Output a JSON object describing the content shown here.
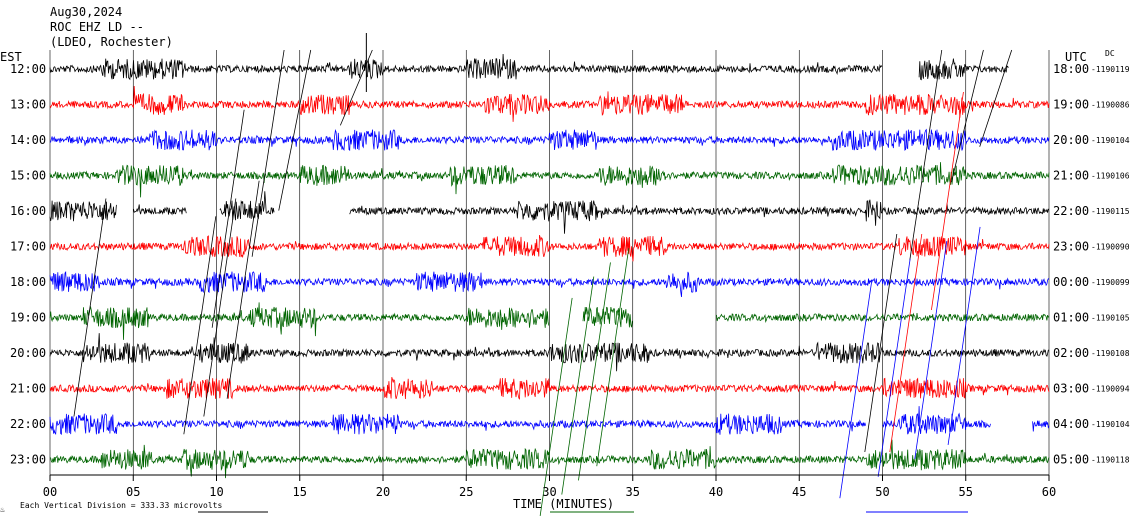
{
  "header": {
    "date": "Aug30,2024",
    "station": "ROC EHZ LD --",
    "network": "(LDEO, Rochester)"
  },
  "left_axis_label": "EST",
  "right_axis_label": "UTC",
  "dc_label": "DC",
  "footer": {
    "x_axis_title": "TIME (MINUTES)",
    "scale_note": "Each Vertical Division =  333.33 microvolts",
    "corner_mark": "♨"
  },
  "colors": {
    "cycle": [
      "#000000",
      "#ff0000",
      "#0000ff",
      "#006400"
    ],
    "grid": "#000000"
  },
  "chart_data": {
    "type": "line",
    "chart_kind": "helicorder seismogram",
    "x_range_minutes": [
      0,
      60
    ],
    "x_ticks": [
      "00",
      "05",
      "10",
      "15",
      "20",
      "25",
      "30",
      "35",
      "40",
      "45",
      "50",
      "55",
      "60"
    ],
    "rows": [
      {
        "est": "12:00",
        "utc": "18:00",
        "dc": "-1190119",
        "color": "#000000",
        "gaps": [
          [
            50,
            52.2
          ],
          [
            57.6,
            60
          ]
        ],
        "active": [
          [
            3,
            8
          ],
          [
            18,
            20
          ],
          [
            25,
            28
          ],
          [
            50,
            55
          ]
        ]
      },
      {
        "est": "13:00",
        "utc": "19:00",
        "dc": "-1190086",
        "color": "#ff0000",
        "gaps": [],
        "active": [
          [
            5,
            8
          ],
          [
            15,
            18
          ],
          [
            26,
            30
          ],
          [
            33,
            38
          ],
          [
            49,
            55
          ]
        ]
      },
      {
        "est": "14:00",
        "utc": "20:00",
        "dc": "-1190104",
        "color": "#0000ff",
        "gaps": [],
        "active": [
          [
            6,
            10
          ],
          [
            17,
            21
          ],
          [
            30,
            33
          ],
          [
            47,
            55
          ]
        ]
      },
      {
        "est": "15:00",
        "utc": "21:00",
        "dc": "-1190106",
        "color": "#006400",
        "gaps": [],
        "active": [
          [
            4,
            8
          ],
          [
            15,
            18
          ],
          [
            24,
            28
          ],
          [
            33,
            37
          ],
          [
            47,
            55
          ]
        ]
      },
      {
        "est": "16:00",
        "utc": "22:00",
        "dc": "-1190115",
        "color": "#000000",
        "gaps": [
          [
            4,
            5
          ],
          [
            8.2,
            10.2
          ],
          [
            13.5,
            18
          ]
        ],
        "active": [
          [
            0,
            4
          ],
          [
            10.5,
            13
          ],
          [
            28,
            33
          ],
          [
            49,
            50
          ]
        ]
      },
      {
        "est": "17:00",
        "utc": "23:00",
        "dc": "-1190090",
        "color": "#ff0000",
        "gaps": [],
        "active": [
          [
            8,
            12
          ],
          [
            26,
            30
          ],
          [
            33,
            37
          ],
          [
            51,
            55
          ]
        ]
      },
      {
        "est": "18:00",
        "utc": "00:00",
        "dc": "-1190099",
        "color": "#0000ff",
        "gaps": [],
        "active": [
          [
            0,
            3
          ],
          [
            9,
            13
          ],
          [
            22,
            26
          ],
          [
            37,
            39
          ]
        ]
      },
      {
        "est": "19:00",
        "utc": "01:00",
        "dc": "-1190105",
        "color": "#006400",
        "gaps": [
          [
            30,
            32
          ],
          [
            35,
            40
          ]
        ],
        "active": [
          [
            2,
            6
          ],
          [
            12,
            16
          ],
          [
            25,
            30
          ],
          [
            32,
            35
          ]
        ]
      },
      {
        "est": "20:00",
        "utc": "02:00",
        "dc": "-1190108",
        "color": "#000000",
        "gaps": [],
        "active": [
          [
            2,
            6
          ],
          [
            9,
            12
          ],
          [
            30,
            36
          ],
          [
            46,
            50
          ]
        ]
      },
      {
        "est": "21:00",
        "utc": "03:00",
        "dc": "-1190094",
        "color": "#ff0000",
        "gaps": [],
        "active": [
          [
            7,
            11
          ],
          [
            20,
            23
          ],
          [
            27,
            30
          ],
          [
            50,
            55
          ]
        ]
      },
      {
        "est": "22:00",
        "utc": "04:00",
        "dc": "-1190104",
        "color": "#0000ff",
        "gaps": [
          [
            49,
            50
          ],
          [
            56.5,
            59
          ]
        ],
        "active": [
          [
            0,
            4
          ],
          [
            17,
            21
          ],
          [
            40,
            44
          ],
          [
            51,
            55
          ]
        ]
      },
      {
        "est": "23:00",
        "utc": "05:00",
        "dc": "-1190118",
        "color": "#006400",
        "gaps": [],
        "active": [
          [
            3,
            6
          ],
          [
            8,
            12
          ],
          [
            25,
            30
          ],
          [
            36,
            40
          ],
          [
            49,
            55
          ]
        ]
      }
    ]
  }
}
